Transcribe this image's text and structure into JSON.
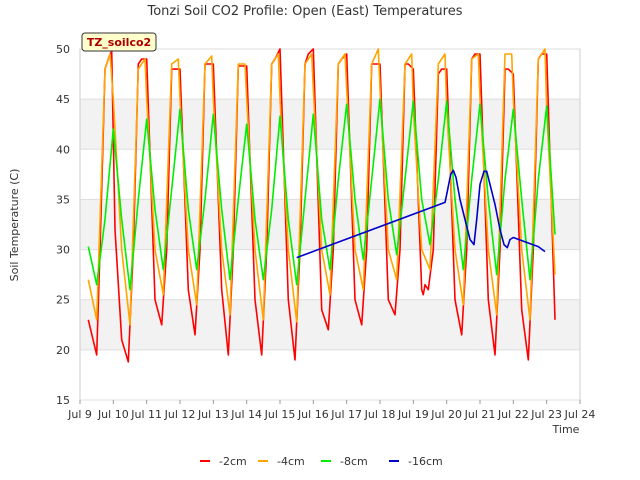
{
  "chart_data": {
    "type": "line",
    "title": "Tonzi Soil CO2 Profile: Open (East) Temperatures",
    "xlabel": "Time",
    "ylabel": "Soil Temperature (C)",
    "site_label": "TZ_soilco2",
    "xlim": [
      9,
      24
    ],
    "ylim": [
      15,
      50
    ],
    "x_ticks": [
      {
        "v": 9,
        "label": "Jul 9"
      },
      {
        "v": 10,
        "label": "Jul 10"
      },
      {
        "v": 11,
        "label": "Jul 11"
      },
      {
        "v": 12,
        "label": "Jul 12"
      },
      {
        "v": 13,
        "label": "Jul 13"
      },
      {
        "v": 14,
        "label": "Jul 14"
      },
      {
        "v": 15,
        "label": "Jul 15"
      },
      {
        "v": 16,
        "label": "Jul 16"
      },
      {
        "v": 17,
        "label": "Jul 17"
      },
      {
        "v": 18,
        "label": "Jul 18"
      },
      {
        "v": 19,
        "label": "Jul 19"
      },
      {
        "v": 20,
        "label": "Jul 20"
      },
      {
        "v": 21,
        "label": "Jul 21"
      },
      {
        "v": 22,
        "label": "Jul 22"
      },
      {
        "v": 23,
        "label": "Jul 23"
      },
      {
        "v": 24,
        "label": "Jul 24"
      }
    ],
    "y_ticks": [
      {
        "v": 15,
        "label": "15"
      },
      {
        "v": 20,
        "label": "20"
      },
      {
        "v": 25,
        "label": "25"
      },
      {
        "v": 30,
        "label": "30"
      },
      {
        "v": 35,
        "label": "35"
      },
      {
        "v": 40,
        "label": "40"
      },
      {
        "v": 45,
        "label": "45"
      },
      {
        "v": 50,
        "label": "50"
      }
    ],
    "bands": [
      [
        20,
        25
      ],
      [
        30,
        35
      ],
      [
        40,
        45
      ]
    ],
    "series": [
      {
        "name": "-2cm",
        "color": "#ff0000",
        "x": [
          9.25,
          9.5,
          9.6,
          9.75,
          9.85,
          9.95,
          10.05,
          10.25,
          10.45,
          10.6,
          10.75,
          10.85,
          11.0,
          11.25,
          11.45,
          11.6,
          11.75,
          11.85,
          12.0,
          12.25,
          12.45,
          12.6,
          12.75,
          12.85,
          13.0,
          13.25,
          13.45,
          13.6,
          13.75,
          13.85,
          14.0,
          14.25,
          14.45,
          14.6,
          14.75,
          14.85,
          15.0,
          15.25,
          15.45,
          15.6,
          15.75,
          15.85,
          16.0,
          16.25,
          16.45,
          16.6,
          16.75,
          16.85,
          17.0,
          17.25,
          17.45,
          17.6,
          17.75,
          17.85,
          18.0,
          18.25,
          18.45,
          18.6,
          18.75,
          18.85,
          19.0,
          19.25,
          19.3,
          19.35,
          19.45,
          19.6,
          19.75,
          19.85,
          20.0,
          20.25,
          20.45,
          20.6,
          20.75,
          20.85,
          21.0,
          21.25,
          21.45,
          21.6,
          21.75,
          21.85,
          22.0,
          22.25,
          22.45,
          22.6,
          22.75,
          22.85,
          23.0,
          23.25
        ],
        "y": [
          23,
          19.5,
          30,
          48,
          49,
          49.8,
          32,
          21,
          18.8,
          30,
          48.5,
          49,
          49,
          25,
          22.5,
          30,
          48,
          48,
          48,
          26,
          21.5,
          30,
          48.5,
          48.5,
          48.5,
          26,
          19.5,
          30,
          48.3,
          48.3,
          48.3,
          25,
          19.5,
          30,
          48.5,
          49,
          50,
          25,
          19,
          30,
          48.5,
          49.5,
          50,
          24,
          22,
          30,
          48.5,
          49,
          49.5,
          25,
          22.5,
          30,
          48.5,
          48.5,
          48.5,
          25,
          23.5,
          30,
          48.5,
          48.5,
          48,
          26,
          25.5,
          26.5,
          26,
          30,
          47.5,
          48,
          48,
          25,
          21.5,
          30,
          49,
          49.5,
          49.5,
          25,
          19.5,
          30,
          48,
          48,
          47.5,
          24,
          19,
          30,
          49,
          49.5,
          49.5,
          23
        ]
      },
      {
        "name": "-4cm",
        "color": "#ffa500",
        "x": [
          9.25,
          9.5,
          9.75,
          9.9,
          10.0,
          10.25,
          10.5,
          10.75,
          10.95,
          11.0,
          11.25,
          11.5,
          11.75,
          11.95,
          12.0,
          12.25,
          12.5,
          12.75,
          12.95,
          13.0,
          13.25,
          13.5,
          13.75,
          13.95,
          14.0,
          14.25,
          14.5,
          14.75,
          14.95,
          15.0,
          15.25,
          15.5,
          15.75,
          15.95,
          16.0,
          16.25,
          16.5,
          16.75,
          16.95,
          17.0,
          17.25,
          17.5,
          17.75,
          17.95,
          18.0,
          18.25,
          18.5,
          18.75,
          18.95,
          19.0,
          19.25,
          19.5,
          19.75,
          19.95,
          20.0,
          20.25,
          20.5,
          20.75,
          20.95,
          21.0,
          21.25,
          21.5,
          21.75,
          21.95,
          22.0,
          22.25,
          22.5,
          22.75,
          22.95,
          23.0,
          23.25
        ],
        "y": [
          27,
          23,
          48,
          49.5,
          45,
          30,
          22.5,
          48,
          49,
          45,
          30,
          25.5,
          48.5,
          49,
          45,
          30,
          24.5,
          48.5,
          49.3,
          45,
          30,
          23.5,
          48.5,
          48.5,
          45,
          30,
          23,
          48.5,
          49.5,
          45,
          30,
          22.8,
          48.5,
          49.5,
          46,
          30,
          25.5,
          48.5,
          49.5,
          46,
          30,
          26,
          48.5,
          50,
          46,
          30,
          27,
          48.5,
          49.5,
          44,
          30,
          28,
          48.5,
          49.5,
          44,
          30,
          24.5,
          49,
          49.5,
          45,
          30,
          23.5,
          49.5,
          49.5,
          45,
          30,
          23,
          49,
          50,
          44,
          27.5
        ]
      },
      {
        "name": "-8cm",
        "color": "#00ee00",
        "x": [
          9.25,
          9.5,
          9.75,
          10.0,
          10.25,
          10.5,
          10.75,
          11.0,
          11.25,
          11.5,
          11.75,
          12.0,
          12.25,
          12.5,
          12.75,
          13.0,
          13.25,
          13.5,
          13.75,
          14.0,
          14.25,
          14.5,
          14.75,
          15.0,
          15.25,
          15.5,
          15.75,
          16.0,
          16.25,
          16.5,
          16.75,
          17.0,
          17.25,
          17.5,
          17.75,
          18.0,
          18.25,
          18.5,
          18.75,
          19.0,
          19.25,
          19.5,
          19.75,
          20.0,
          20.25,
          20.5,
          20.75,
          21.0,
          21.25,
          21.5,
          21.75,
          22.0,
          22.25,
          22.5,
          22.75,
          23.0,
          23.25
        ],
        "y": [
          30.3,
          26.5,
          33,
          42,
          33,
          26,
          35,
          43,
          34,
          28,
          36,
          44,
          34,
          28,
          35,
          43.5,
          34,
          27,
          35,
          42.5,
          33,
          27,
          34,
          43.3,
          33,
          26.5,
          35,
          43.5,
          33,
          28,
          37,
          44.5,
          35,
          29,
          37,
          45,
          35,
          29.5,
          37,
          44.8,
          35,
          30.5,
          37,
          44.8,
          35,
          28,
          37,
          44.5,
          35,
          27.5,
          37,
          44,
          35,
          27,
          37,
          44.3,
          31.5
        ]
      },
      {
        "name": "-16cm",
        "color": "#0000cc",
        "x": [
          15.5,
          19.95,
          20.0,
          20.12,
          20.2,
          20.28,
          20.4,
          20.55,
          20.7,
          20.82,
          20.9,
          21.0,
          21.12,
          21.2,
          21.3,
          21.45,
          21.6,
          21.72,
          21.82,
          21.9,
          22.0,
          22.5,
          22.75,
          22.95
        ],
        "y": [
          29.2,
          34.7,
          35.5,
          37.5,
          37.9,
          37.2,
          35,
          33,
          31,
          30.5,
          33,
          36.5,
          37.8,
          37.8,
          36.5,
          34.5,
          32,
          30.5,
          30.2,
          31,
          31.2,
          30.6,
          30.3,
          29.8
        ]
      }
    ]
  }
}
